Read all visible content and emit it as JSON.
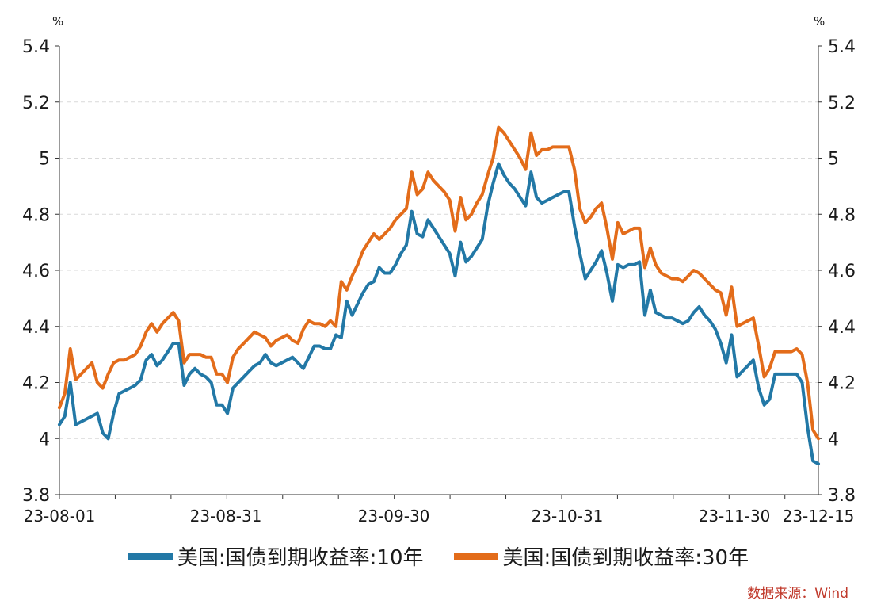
{
  "chart_data": {
    "type": "line",
    "y_unit_left": "%",
    "y_unit_right": "%",
    "ylim": [
      3.8,
      5.4
    ],
    "yticks": [
      "5.4",
      "5.2",
      "5",
      "4.8",
      "4.6",
      "4.4",
      "4.2",
      "4",
      "3.8"
    ],
    "ytick_values": [
      5.4,
      5.2,
      5.0,
      4.8,
      4.6,
      4.4,
      4.2,
      4.0,
      3.8
    ],
    "xlabels": [
      "23-08-01",
      "23-08-31",
      "23-09-30",
      "23-10-31",
      "23-11-30",
      "23-12-15"
    ],
    "grid": true,
    "legend_position": "bottom",
    "series": [
      {
        "name": "美国:国债到期收益率:10年",
        "color": "#2278a6",
        "values": [
          4.05,
          4.08,
          4.2,
          4.05,
          4.06,
          4.07,
          4.08,
          4.09,
          4.02,
          4.0,
          4.09,
          4.16,
          4.17,
          4.18,
          4.19,
          4.21,
          4.28,
          4.3,
          4.26,
          4.28,
          4.31,
          4.34,
          4.34,
          4.19,
          4.23,
          4.25,
          4.23,
          4.22,
          4.2,
          4.12,
          4.12,
          4.09,
          4.18,
          4.2,
          4.22,
          4.24,
          4.26,
          4.27,
          4.3,
          4.27,
          4.26,
          4.27,
          4.28,
          4.29,
          4.27,
          4.25,
          4.29,
          4.33,
          4.33,
          4.32,
          4.32,
          4.37,
          4.36,
          4.49,
          4.44,
          4.48,
          4.52,
          4.55,
          4.56,
          4.61,
          4.59,
          4.59,
          4.62,
          4.66,
          4.69,
          4.81,
          4.73,
          4.72,
          4.78,
          4.75,
          4.72,
          4.69,
          4.66,
          4.58,
          4.7,
          4.63,
          4.65,
          4.68,
          4.71,
          4.83,
          4.91,
          4.98,
          4.94,
          4.91,
          4.89,
          4.86,
          4.83,
          4.95,
          4.86,
          4.84,
          4.85,
          4.86,
          4.87,
          4.88,
          4.88,
          4.76,
          4.66,
          4.57,
          4.6,
          4.63,
          4.67,
          4.59,
          4.49,
          4.62,
          4.61,
          4.62,
          4.62,
          4.63,
          4.44,
          4.53,
          4.45,
          4.44,
          4.43,
          4.43,
          4.42,
          4.41,
          4.42,
          4.45,
          4.47,
          4.44,
          4.42,
          4.39,
          4.34,
          4.27,
          4.37,
          4.22,
          4.24,
          4.26,
          4.28,
          4.18,
          4.12,
          4.14,
          4.23,
          4.23,
          4.23,
          4.23,
          4.23,
          4.2,
          4.04,
          3.92,
          3.91
        ]
      },
      {
        "name": "美国:国债到期收益率:30年",
        "color": "#e36c1a",
        "values": [
          4.11,
          4.16,
          4.32,
          4.21,
          4.23,
          4.25,
          4.27,
          4.2,
          4.18,
          4.23,
          4.27,
          4.28,
          4.28,
          4.29,
          4.3,
          4.33,
          4.38,
          4.41,
          4.38,
          4.41,
          4.43,
          4.45,
          4.42,
          4.27,
          4.3,
          4.3,
          4.3,
          4.29,
          4.29,
          4.23,
          4.23,
          4.2,
          4.29,
          4.32,
          4.34,
          4.36,
          4.38,
          4.37,
          4.36,
          4.33,
          4.35,
          4.36,
          4.37,
          4.35,
          4.34,
          4.39,
          4.42,
          4.41,
          4.41,
          4.4,
          4.42,
          4.4,
          4.56,
          4.53,
          4.58,
          4.62,
          4.67,
          4.7,
          4.73,
          4.71,
          4.73,
          4.75,
          4.78,
          4.8,
          4.82,
          4.95,
          4.87,
          4.89,
          4.95,
          4.92,
          4.9,
          4.88,
          4.85,
          4.74,
          4.86,
          4.78,
          4.8,
          4.84,
          4.87,
          4.94,
          5.0,
          5.11,
          5.09,
          5.06,
          5.03,
          5.0,
          4.96,
          5.09,
          5.01,
          5.03,
          5.03,
          5.04,
          5.04,
          5.04,
          5.04,
          4.96,
          4.82,
          4.77,
          4.79,
          4.82,
          4.84,
          4.75,
          4.64,
          4.77,
          4.73,
          4.74,
          4.75,
          4.75,
          4.61,
          4.68,
          4.62,
          4.59,
          4.58,
          4.57,
          4.57,
          4.56,
          4.58,
          4.6,
          4.59,
          4.57,
          4.55,
          4.53,
          4.52,
          4.44,
          4.54,
          4.4,
          4.41,
          4.42,
          4.43,
          4.33,
          4.22,
          4.25,
          4.31,
          4.31,
          4.31,
          4.31,
          4.32,
          4.3,
          4.2,
          4.03,
          4.0
        ]
      }
    ]
  },
  "source_note": "数据来源：Wind"
}
